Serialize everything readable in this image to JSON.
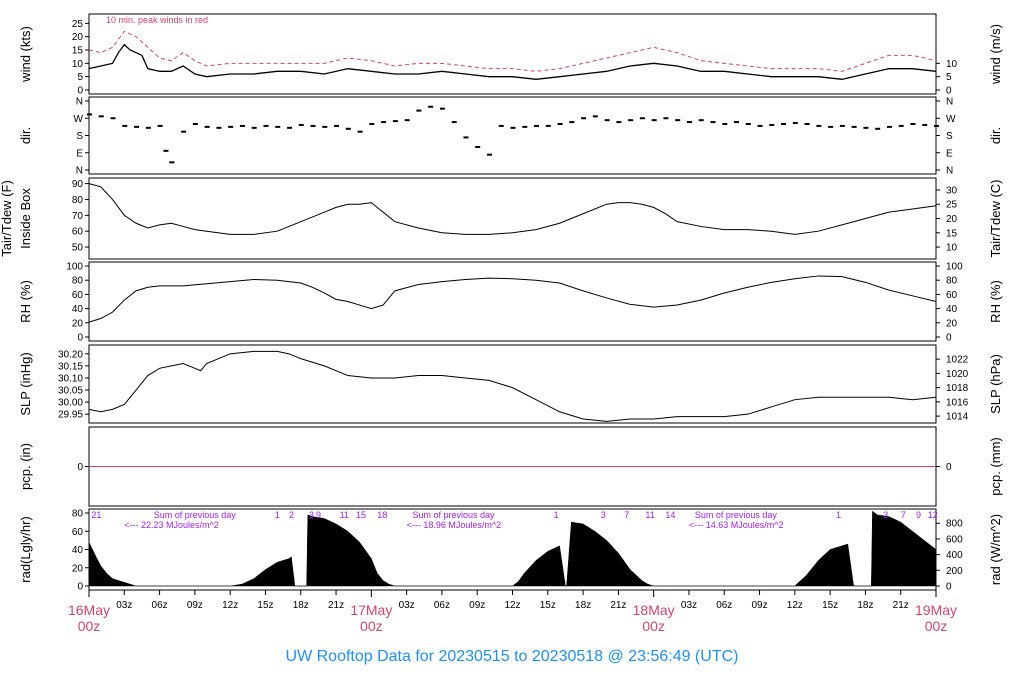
{
  "footer_title": "UW Rooftop Data for 20230515  to  20230518 @ 23:56:49  (UTC)",
  "colors": {
    "peak": "#d0456b",
    "series": "#000000",
    "annotation": "#a020f0",
    "zero_line": "#d0456b",
    "title": "#1e90ff"
  },
  "x_axis": {
    "range_hours": [
      0,
      72
    ],
    "hour_ticks": [
      {
        "h": 3,
        "label": "03z"
      },
      {
        "h": 6,
        "label": "06z"
      },
      {
        "h": 9,
        "label": "09z"
      },
      {
        "h": 12,
        "label": "12z"
      },
      {
        "h": 15,
        "label": "15z"
      },
      {
        "h": 18,
        "label": "18z"
      },
      {
        "h": 21,
        "label": "21z"
      },
      {
        "h": 27,
        "label": "03z"
      },
      {
        "h": 30,
        "label": "06z"
      },
      {
        "h": 33,
        "label": "09z"
      },
      {
        "h": 36,
        "label": "12z"
      },
      {
        "h": 39,
        "label": "15z"
      },
      {
        "h": 42,
        "label": "18z"
      },
      {
        "h": 45,
        "label": "21z"
      },
      {
        "h": 51,
        "label": "03z"
      },
      {
        "h": 54,
        "label": "06z"
      },
      {
        "h": 57,
        "label": "09z"
      },
      {
        "h": 60,
        "label": "12z"
      },
      {
        "h": 63,
        "label": "15z"
      },
      {
        "h": 66,
        "label": "18z"
      },
      {
        "h": 69,
        "label": "21z"
      }
    ],
    "day_labels": [
      {
        "h": 0,
        "day": "16May",
        "hour": "00z"
      },
      {
        "h": 24,
        "day": "17May",
        "hour": "00z"
      },
      {
        "h": 48,
        "day": "18May",
        "hour": "00z"
      },
      {
        "h": 72,
        "day": "19May",
        "hour": "00z"
      }
    ]
  },
  "chart_data": [
    {
      "type": "line",
      "id": "wind",
      "ylabel_left": "wind (kts)",
      "ylabel_right": "wind (m/s)",
      "ylim": [
        0,
        27
      ],
      "yticks_left": [
        0,
        5,
        10,
        15,
        20,
        25
      ],
      "yticks_right": [
        {
          "v": 0,
          "label": "0"
        },
        {
          "v": 5,
          "label": "5"
        },
        {
          "v": 10,
          "label": "10"
        }
      ],
      "annotation": "10 min. peak winds in red",
      "series": [
        {
          "role": "mean",
          "x": [
            0,
            1,
            2,
            2.5,
            3,
            3.5,
            4,
            4.5,
            5,
            6,
            7,
            8,
            9,
            10,
            12,
            14,
            16,
            18,
            20,
            22,
            24,
            26,
            28,
            30,
            32,
            34,
            36,
            38,
            40,
            42,
            44,
            46,
            48,
            50,
            52,
            54,
            56,
            58,
            60,
            62,
            64,
            66,
            68,
            70,
            72
          ],
          "y": [
            8,
            9,
            10,
            14,
            17,
            15,
            14,
            13,
            8,
            7,
            7,
            9,
            6,
            5,
            6,
            6,
            7,
            7,
            6,
            8,
            7,
            6,
            6,
            7,
            6,
            5,
            5,
            4,
            5,
            6,
            7,
            9,
            10,
            9,
            7,
            7,
            6,
            5,
            5,
            5,
            4,
            6,
            8,
            8,
            7
          ]
        },
        {
          "role": "peak",
          "x": [
            0,
            1,
            2,
            3,
            4,
            5,
            6,
            7,
            8,
            9,
            10,
            12,
            14,
            16,
            18,
            20,
            22,
            24,
            26,
            28,
            30,
            32,
            34,
            36,
            38,
            40,
            42,
            44,
            46,
            48,
            50,
            52,
            54,
            56,
            58,
            60,
            62,
            64,
            66,
            68,
            70,
            72
          ],
          "y": [
            15,
            14,
            16,
            22,
            20,
            16,
            12,
            11,
            14,
            11,
            9,
            10,
            10,
            10,
            10,
            10,
            12,
            11,
            9,
            10,
            10,
            9,
            8,
            8,
            7,
            8,
            10,
            12,
            14,
            16,
            14,
            11,
            10,
            9,
            8,
            8,
            8,
            7,
            10,
            13,
            13,
            11
          ]
        }
      ]
    },
    {
      "type": "scatter",
      "id": "dir",
      "ylabel_left": "dir.",
      "ylabel_right": "dir.",
      "ylim": [
        0,
        360
      ],
      "ytick_labels": [
        {
          "v": 0,
          "label": "N"
        },
        {
          "v": 90,
          "label": "E"
        },
        {
          "v": 180,
          "label": "S"
        },
        {
          "v": 270,
          "label": "W"
        },
        {
          "v": 360,
          "label": "N"
        }
      ],
      "x": [
        0,
        1,
        2,
        3,
        4,
        5,
        6,
        6.5,
        7,
        8,
        9,
        10,
        11,
        12,
        13,
        14,
        15,
        16,
        17,
        18,
        19,
        20,
        21,
        22,
        23,
        24,
        25,
        26,
        27,
        28,
        29,
        30,
        31,
        32,
        33,
        34,
        35,
        36,
        37,
        38,
        39,
        40,
        41,
        42,
        43,
        44,
        45,
        46,
        47,
        48,
        49,
        50,
        51,
        52,
        53,
        54,
        55,
        56,
        57,
        58,
        59,
        60,
        61,
        62,
        63,
        64,
        65,
        66,
        67,
        68,
        69,
        70,
        71,
        72
      ],
      "y": [
        290,
        280,
        270,
        230,
        225,
        220,
        230,
        100,
        40,
        200,
        240,
        225,
        220,
        225,
        230,
        220,
        230,
        225,
        220,
        235,
        230,
        225,
        230,
        215,
        200,
        240,
        250,
        255,
        260,
        310,
        330,
        320,
        250,
        170,
        120,
        80,
        230,
        220,
        225,
        230,
        230,
        240,
        250,
        270,
        280,
        260,
        250,
        260,
        270,
        260,
        270,
        260,
        250,
        260,
        250,
        240,
        250,
        240,
        230,
        235,
        240,
        245,
        240,
        230,
        225,
        230,
        225,
        220,
        215,
        225,
        230,
        240,
        235,
        230
      ]
    },
    {
      "type": "line",
      "id": "tair",
      "ylabel_left": "Tair/Tdew (F)",
      "ylabel_left2": "Inside Box",
      "ylabel_right": "Tair/Tdew (C)",
      "ylim": [
        45,
        91
      ],
      "yticks_left": [
        50,
        60,
        70,
        80,
        90
      ],
      "yticks_right": [
        {
          "v": 50,
          "label": "10"
        },
        {
          "v": 59,
          "label": "15"
        },
        {
          "v": 68,
          "label": "20"
        },
        {
          "v": 77,
          "label": "25"
        },
        {
          "v": 86,
          "label": "30"
        }
      ],
      "x": [
        0,
        1,
        2,
        3,
        4,
        5,
        6,
        7,
        8,
        9,
        10,
        12,
        14,
        16,
        18,
        20,
        21,
        22,
        23,
        24,
        25,
        26,
        28,
        30,
        32,
        34,
        36,
        38,
        40,
        42,
        44,
        45,
        46,
        47,
        48,
        49,
        50,
        52,
        54,
        56,
        58,
        60,
        62,
        64,
        66,
        68,
        70,
        72
      ],
      "y": [
        90,
        88,
        80,
        70,
        65,
        62,
        64,
        65,
        63,
        61,
        60,
        58,
        58,
        60,
        66,
        72,
        75,
        77,
        77,
        78,
        72,
        66,
        62,
        59,
        58,
        58,
        59,
        61,
        65,
        71,
        77,
        78,
        78,
        77,
        75,
        71,
        66,
        63,
        61,
        61,
        60,
        58,
        60,
        64,
        68,
        72,
        74,
        76
      ]
    },
    {
      "type": "line",
      "id": "rh",
      "ylabel_left": "RH (%)",
      "ylabel_right": "RH (%)",
      "ylim": [
        0,
        100
      ],
      "yticks_left": [
        0,
        20,
        40,
        60,
        80,
        100
      ],
      "yticks_right": [
        {
          "v": 0,
          "label": "0"
        },
        {
          "v": 20,
          "label": "20"
        },
        {
          "v": 40,
          "label": "40"
        },
        {
          "v": 60,
          "label": "60"
        },
        {
          "v": 80,
          "label": "80"
        },
        {
          "v": 100,
          "label": "100"
        }
      ],
      "x": [
        0,
        1,
        2,
        3,
        4,
        5,
        6,
        8,
        10,
        12,
        14,
        16,
        18,
        19,
        20,
        21,
        22,
        23,
        24,
        25,
        26,
        28,
        30,
        32,
        34,
        36,
        38,
        40,
        42,
        44,
        46,
        48,
        50,
        52,
        54,
        56,
        58,
        60,
        62,
        64,
        66,
        68,
        70,
        72
      ],
      "y": [
        21,
        26,
        35,
        52,
        65,
        70,
        72,
        72,
        75,
        78,
        81,
        80,
        76,
        70,
        62,
        53,
        50,
        45,
        40,
        45,
        65,
        74,
        78,
        81,
        83,
        82,
        80,
        76,
        65,
        55,
        46,
        42,
        45,
        52,
        62,
        70,
        77,
        82,
        86,
        85,
        77,
        66,
        58,
        50
      ]
    },
    {
      "type": "line",
      "id": "slp",
      "ylabel_left": "SLP (inHg)",
      "ylabel_right": "SLP (hPa)",
      "ylim": [
        29.93,
        30.22
      ],
      "yticks_left": [
        {
          "v": 29.95,
          "label": "29.95"
        },
        {
          "v": 30.0,
          "label": "30.00"
        },
        {
          "v": 30.05,
          "label": "30.05"
        },
        {
          "v": 30.1,
          "label": "30.10"
        },
        {
          "v": 30.15,
          "label": "30.15"
        },
        {
          "v": 30.2,
          "label": "30.20"
        }
      ],
      "yticks_right": [
        {
          "v": 29.942,
          "label": "1014"
        },
        {
          "v": 30.001,
          "label": "1016"
        },
        {
          "v": 30.06,
          "label": "1018"
        },
        {
          "v": 30.119,
          "label": "1020"
        },
        {
          "v": 30.178,
          "label": "1022"
        }
      ],
      "x": [
        0,
        1,
        2,
        3,
        4,
        5,
        6,
        7,
        8,
        9,
        9.5,
        10,
        11,
        12,
        14,
        16,
        17,
        18,
        20,
        22,
        24,
        26,
        28,
        30,
        32,
        34,
        36,
        38,
        40,
        42,
        44,
        46,
        48,
        50,
        52,
        54,
        56,
        58,
        60,
        62,
        64,
        66,
        68,
        70,
        72
      ],
      "y": [
        29.97,
        29.96,
        29.97,
        29.99,
        30.05,
        30.11,
        30.14,
        30.15,
        30.16,
        30.14,
        30.13,
        30.16,
        30.18,
        30.2,
        30.21,
        30.21,
        30.2,
        30.18,
        30.15,
        30.11,
        30.1,
        30.1,
        30.11,
        30.11,
        30.1,
        30.09,
        30.06,
        30.01,
        29.96,
        29.93,
        29.92,
        29.93,
        29.93,
        29.94,
        29.94,
        29.94,
        29.95,
        29.98,
        30.01,
        30.02,
        30.02,
        30.02,
        30.02,
        30.01,
        30.02
      ]
    },
    {
      "type": "line",
      "id": "pcp",
      "ylabel_left": "pcp. (in)",
      "ylabel_right": "pcp. (mm)",
      "yticks_left": [
        0
      ],
      "yticks_right": [
        {
          "v": 0,
          "label": "0"
        }
      ],
      "x": [
        0,
        72
      ],
      "y": [
        0,
        0
      ]
    },
    {
      "type": "area",
      "id": "rad",
      "ylabel_left": "rad(Lgly/hr)",
      "ylabel_right": "rad (W/m^2)",
      "ylim": [
        0,
        80
      ],
      "yticks_left": [
        0,
        20,
        40,
        60,
        80
      ],
      "yticks_right": [
        {
          "v": 0,
          "label": "0"
        },
        {
          "v": 17.2,
          "label": "200"
        },
        {
          "v": 34.4,
          "label": "400"
        },
        {
          "v": 51.6,
          "label": "600"
        },
        {
          "v": 68.8,
          "label": "800"
        }
      ],
      "x": [
        0,
        0.3,
        0.6,
        1,
        1.5,
        2,
        3,
        3.5,
        4,
        12,
        13,
        14,
        15,
        16,
        17,
        17.2,
        17.5,
        18,
        18.5,
        18.6,
        19,
        20,
        21,
        22,
        23,
        24,
        24.5,
        25,
        25.5,
        26,
        36,
        36.5,
        37,
        38,
        39,
        40,
        40.5,
        40.6,
        41,
        42,
        43,
        44,
        45,
        46,
        47,
        47.5,
        48,
        49,
        49.5,
        50,
        60,
        61,
        62,
        63,
        64,
        64.5,
        65,
        65.5,
        66,
        66.5,
        66.6,
        67,
        68,
        69,
        70,
        71,
        72
      ],
      "y": [
        48,
        40,
        32,
        22,
        14,
        8,
        4,
        2,
        0,
        0,
        2,
        8,
        18,
        26,
        30,
        32,
        0,
        0,
        0,
        78,
        76,
        74,
        68,
        60,
        48,
        30,
        14,
        6,
        2,
        0,
        0,
        5,
        14,
        28,
        38,
        44,
        0,
        0,
        70,
        68,
        60,
        50,
        36,
        18,
        6,
        2,
        0,
        0,
        0,
        0,
        0,
        12,
        28,
        40,
        44,
        46,
        0,
        0,
        0,
        0,
        82,
        78,
        76,
        70,
        60,
        50,
        40
      ]
    }
  ],
  "rad_annotations": [
    {
      "h": 0.2,
      "text": "21",
      "row": 1
    },
    {
      "h": 5.5,
      "text": "Sum of previous day",
      "row": 1
    },
    {
      "h": 3,
      "text": "<--- 22.23 MJoules/m^2",
      "row": 2
    },
    {
      "h": 15.8,
      "text": "1",
      "row": 1
    },
    {
      "h": 17,
      "text": "2",
      "row": 1
    },
    {
      "h": 18.7,
      "text": "3",
      "row": 1
    },
    {
      "h": 19.3,
      "text": "9",
      "row": 1
    },
    {
      "h": 21.3,
      "text": "11",
      "row": 1
    },
    {
      "h": 22.7,
      "text": "15",
      "row": 1
    },
    {
      "h": 24.5,
      "text": "18",
      "row": 1
    },
    {
      "h": 27.5,
      "text": "Sum of previous day",
      "row": 1
    },
    {
      "h": 27,
      "text": "<--- 18.96 MJoules/m^2",
      "row": 2
    },
    {
      "h": 39.5,
      "text": "1",
      "row": 1
    },
    {
      "h": 43.5,
      "text": "3",
      "row": 1
    },
    {
      "h": 45.5,
      "text": "7",
      "row": 1
    },
    {
      "h": 47.3,
      "text": "11",
      "row": 1
    },
    {
      "h": 49,
      "text": "14",
      "row": 1
    },
    {
      "h": 51.5,
      "text": "Sum of previous day",
      "row": 1
    },
    {
      "h": 51,
      "text": "<--- 14.63 MJoules/m^2",
      "row": 2
    },
    {
      "h": 63.5,
      "text": "1",
      "row": 1
    },
    {
      "h": 67.5,
      "text": "3",
      "row": 1
    },
    {
      "h": 69,
      "text": "7",
      "row": 1
    },
    {
      "h": 70.3,
      "text": "9",
      "row": 1
    },
    {
      "h": 71.3,
      "text": "12",
      "row": 1
    }
  ]
}
